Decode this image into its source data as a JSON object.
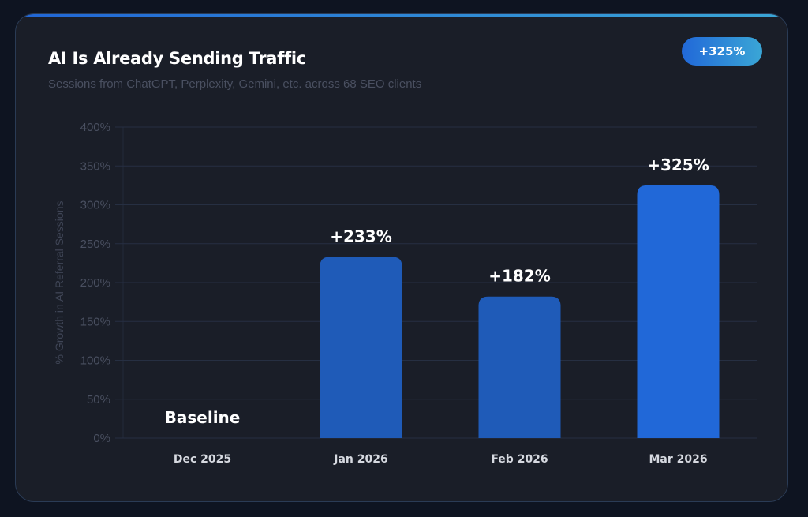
{
  "header": {
    "title": "AI Is Already Sending Traffic",
    "subtitle": "Sessions from ChatGPT, Perplexity, Gemini, etc. across 68 SEO clients",
    "badge": "+325%"
  },
  "colors": {
    "background": "#0e1421",
    "card": "#1a1e28",
    "bar": "#1f5bb8",
    "bar_highlight": "#2168d8",
    "accent_gradient": [
      "#2166d6",
      "#3aa6d6"
    ]
  },
  "chart_data": {
    "type": "bar",
    "title": "AI Is Already Sending Traffic",
    "subtitle": "Sessions from ChatGPT, Perplexity, Gemini, etc. across 68 SEO clients",
    "categories": [
      "Dec 2025",
      "Jan 2026",
      "Feb 2026",
      "Mar 2026"
    ],
    "values": [
      0,
      233,
      182,
      325
    ],
    "data_labels": [
      "Baseline",
      "+233%",
      "+182%",
      "+325%"
    ],
    "xlabel": "",
    "ylabel": "% Growth in AI Referral Sessions",
    "ylim": [
      0,
      400
    ],
    "yticks": [
      "0%",
      "50%",
      "100%",
      "150%",
      "200%",
      "250%",
      "300%",
      "350%",
      "400%"
    ],
    "grid": true,
    "legend": "none"
  }
}
